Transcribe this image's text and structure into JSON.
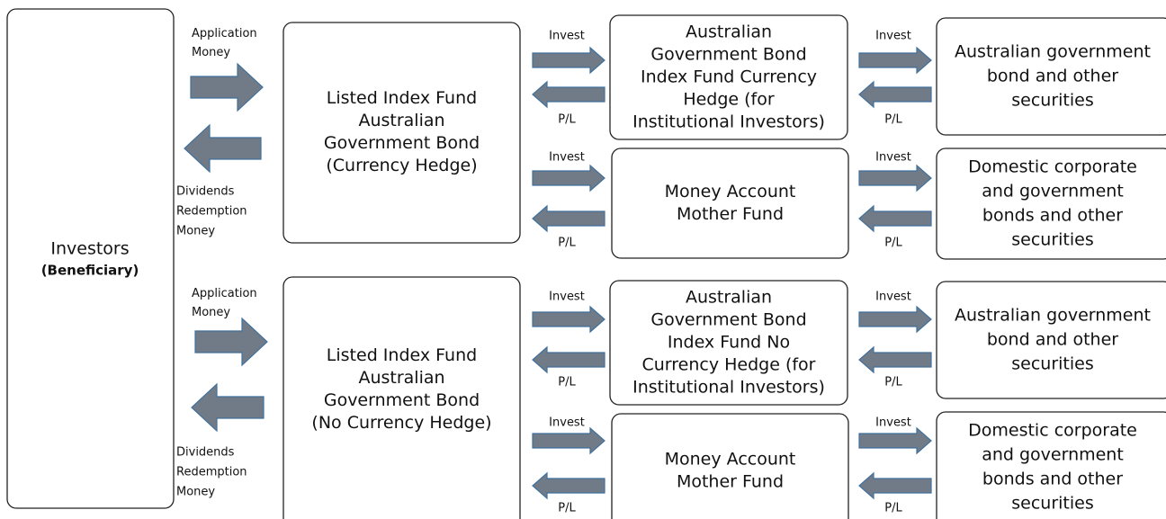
{
  "investors": {
    "lines": [
      "Investors",
      "(Beneficiary)"
    ]
  },
  "groups": [
    {
      "application": [
        "Application",
        "Money"
      ],
      "dividends": [
        "Dividends",
        "Redemption",
        "Money"
      ],
      "fund": {
        "lines": [
          "Listed Index Fund",
          "Australian",
          "Government Bond",
          "(Currency Hedge)"
        ]
      },
      "rows": [
        {
          "flows": [
            {
              "invest": "Invest",
              "pl": "P/L"
            },
            {
              "invest": "Invest",
              "pl": "P/L"
            }
          ],
          "mother": {
            "lines": [
              "Australian",
              "Government Bond",
              "Index Fund Currency",
              "Hedge (for",
              "Institutional Investors)"
            ]
          },
          "assets": {
            "lines": [
              "Australian government",
              "bond and other",
              "securities"
            ]
          }
        },
        {
          "flows": [
            {
              "invest": "Invest",
              "pl": "P/L"
            },
            {
              "invest": "Invest",
              "pl": "P/L"
            }
          ],
          "mother": {
            "lines": [
              "Money Account",
              "Mother Fund"
            ]
          },
          "assets": {
            "lines": [
              "Domestic corporate",
              "and government",
              "bonds and other",
              "securities"
            ]
          }
        }
      ]
    },
    {
      "application": [
        "Application",
        "Money"
      ],
      "dividends": [
        "Dividends",
        "Redemption",
        "Money"
      ],
      "fund": {
        "lines": [
          "Listed Index Fund",
          "Australian",
          "Government Bond",
          "(No Currency Hedge)"
        ]
      },
      "rows": [
        {
          "flows": [
            {
              "invest": "Invest",
              "pl": "P/L"
            },
            {
              "invest": "Invest",
              "pl": "P/L"
            }
          ],
          "mother": {
            "lines": [
              "Australian",
              "Government Bond",
              "Index Fund No",
              "Currency Hedge (for",
              "Institutional Investors)"
            ]
          },
          "assets": {
            "lines": [
              "Australian government",
              "bond and other",
              "securities"
            ]
          }
        },
        {
          "flows": [
            {
              "invest": "Invest",
              "pl": "P/L"
            },
            {
              "invest": "Invest",
              "pl": "P/L"
            }
          ],
          "mother": {
            "lines": [
              "Money Account",
              "Mother Fund"
            ]
          },
          "assets": {
            "lines": [
              "Domestic corporate",
              "and government",
              "bonds and other",
              "securities"
            ]
          }
        }
      ]
    }
  ]
}
